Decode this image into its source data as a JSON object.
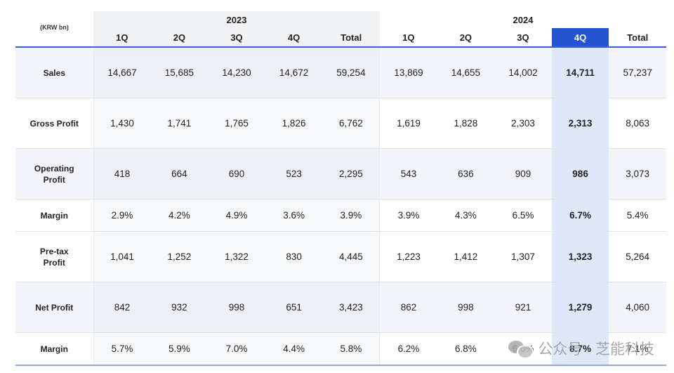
{
  "unit_label": "(KRW bn)",
  "years": [
    "2023",
    "2024"
  ],
  "columns_2023": [
    "1Q",
    "2Q",
    "3Q",
    "4Q",
    "Total"
  ],
  "columns_2024": [
    "1Q",
    "2Q",
    "3Q",
    "4Q",
    "Total"
  ],
  "highlight_color": "#2554d1",
  "rows": [
    {
      "label": "Sales",
      "v2023": [
        "14,667",
        "15,685",
        "14,230",
        "14,672",
        "59,254"
      ],
      "v2024": [
        "13,869",
        "14,655",
        "14,002",
        "14,711",
        "57,237"
      ]
    },
    {
      "label": "Gross Profit",
      "v2023": [
        "1,430",
        "1,741",
        "1,765",
        "1,826",
        "6,762"
      ],
      "v2024": [
        "1,619",
        "1,828",
        "2,303",
        "2,313",
        "8,063"
      ]
    },
    {
      "label": "Operating\nProfit",
      "v2023": [
        "418",
        "664",
        "690",
        "523",
        "2,295"
      ],
      "v2024": [
        "543",
        "636",
        "909",
        "986",
        "3,073"
      ]
    },
    {
      "label": "Margin",
      "v2023": [
        "2.9%",
        "4.2%",
        "4.9%",
        "3.6%",
        "3.9%"
      ],
      "v2024": [
        "3.9%",
        "4.3%",
        "6.5%",
        "6.7%",
        "5.4%"
      ]
    },
    {
      "label": "Pre-tax\nProfit",
      "v2023": [
        "1,041",
        "1,252",
        "1,322",
        "830",
        "4,445"
      ],
      "v2024": [
        "1,223",
        "1,412",
        "1,307",
        "1,323",
        "5,264"
      ]
    },
    {
      "label": "Net Profit",
      "v2023": [
        "842",
        "932",
        "998",
        "651",
        "3,423"
      ],
      "v2024": [
        "862",
        "998",
        "921",
        "1,279",
        "4,060"
      ]
    },
    {
      "label": "Margin",
      "v2023": [
        "5.7%",
        "5.9%",
        "7.0%",
        "4.4%",
        "5.8%"
      ],
      "v2024": [
        "6.2%",
        "6.8%",
        "6.6%",
        "8.7%",
        "7.1%"
      ]
    }
  ],
  "watermark": {
    "text": "公众号 · 芝能科技",
    "icon": "wechat-icon"
  }
}
